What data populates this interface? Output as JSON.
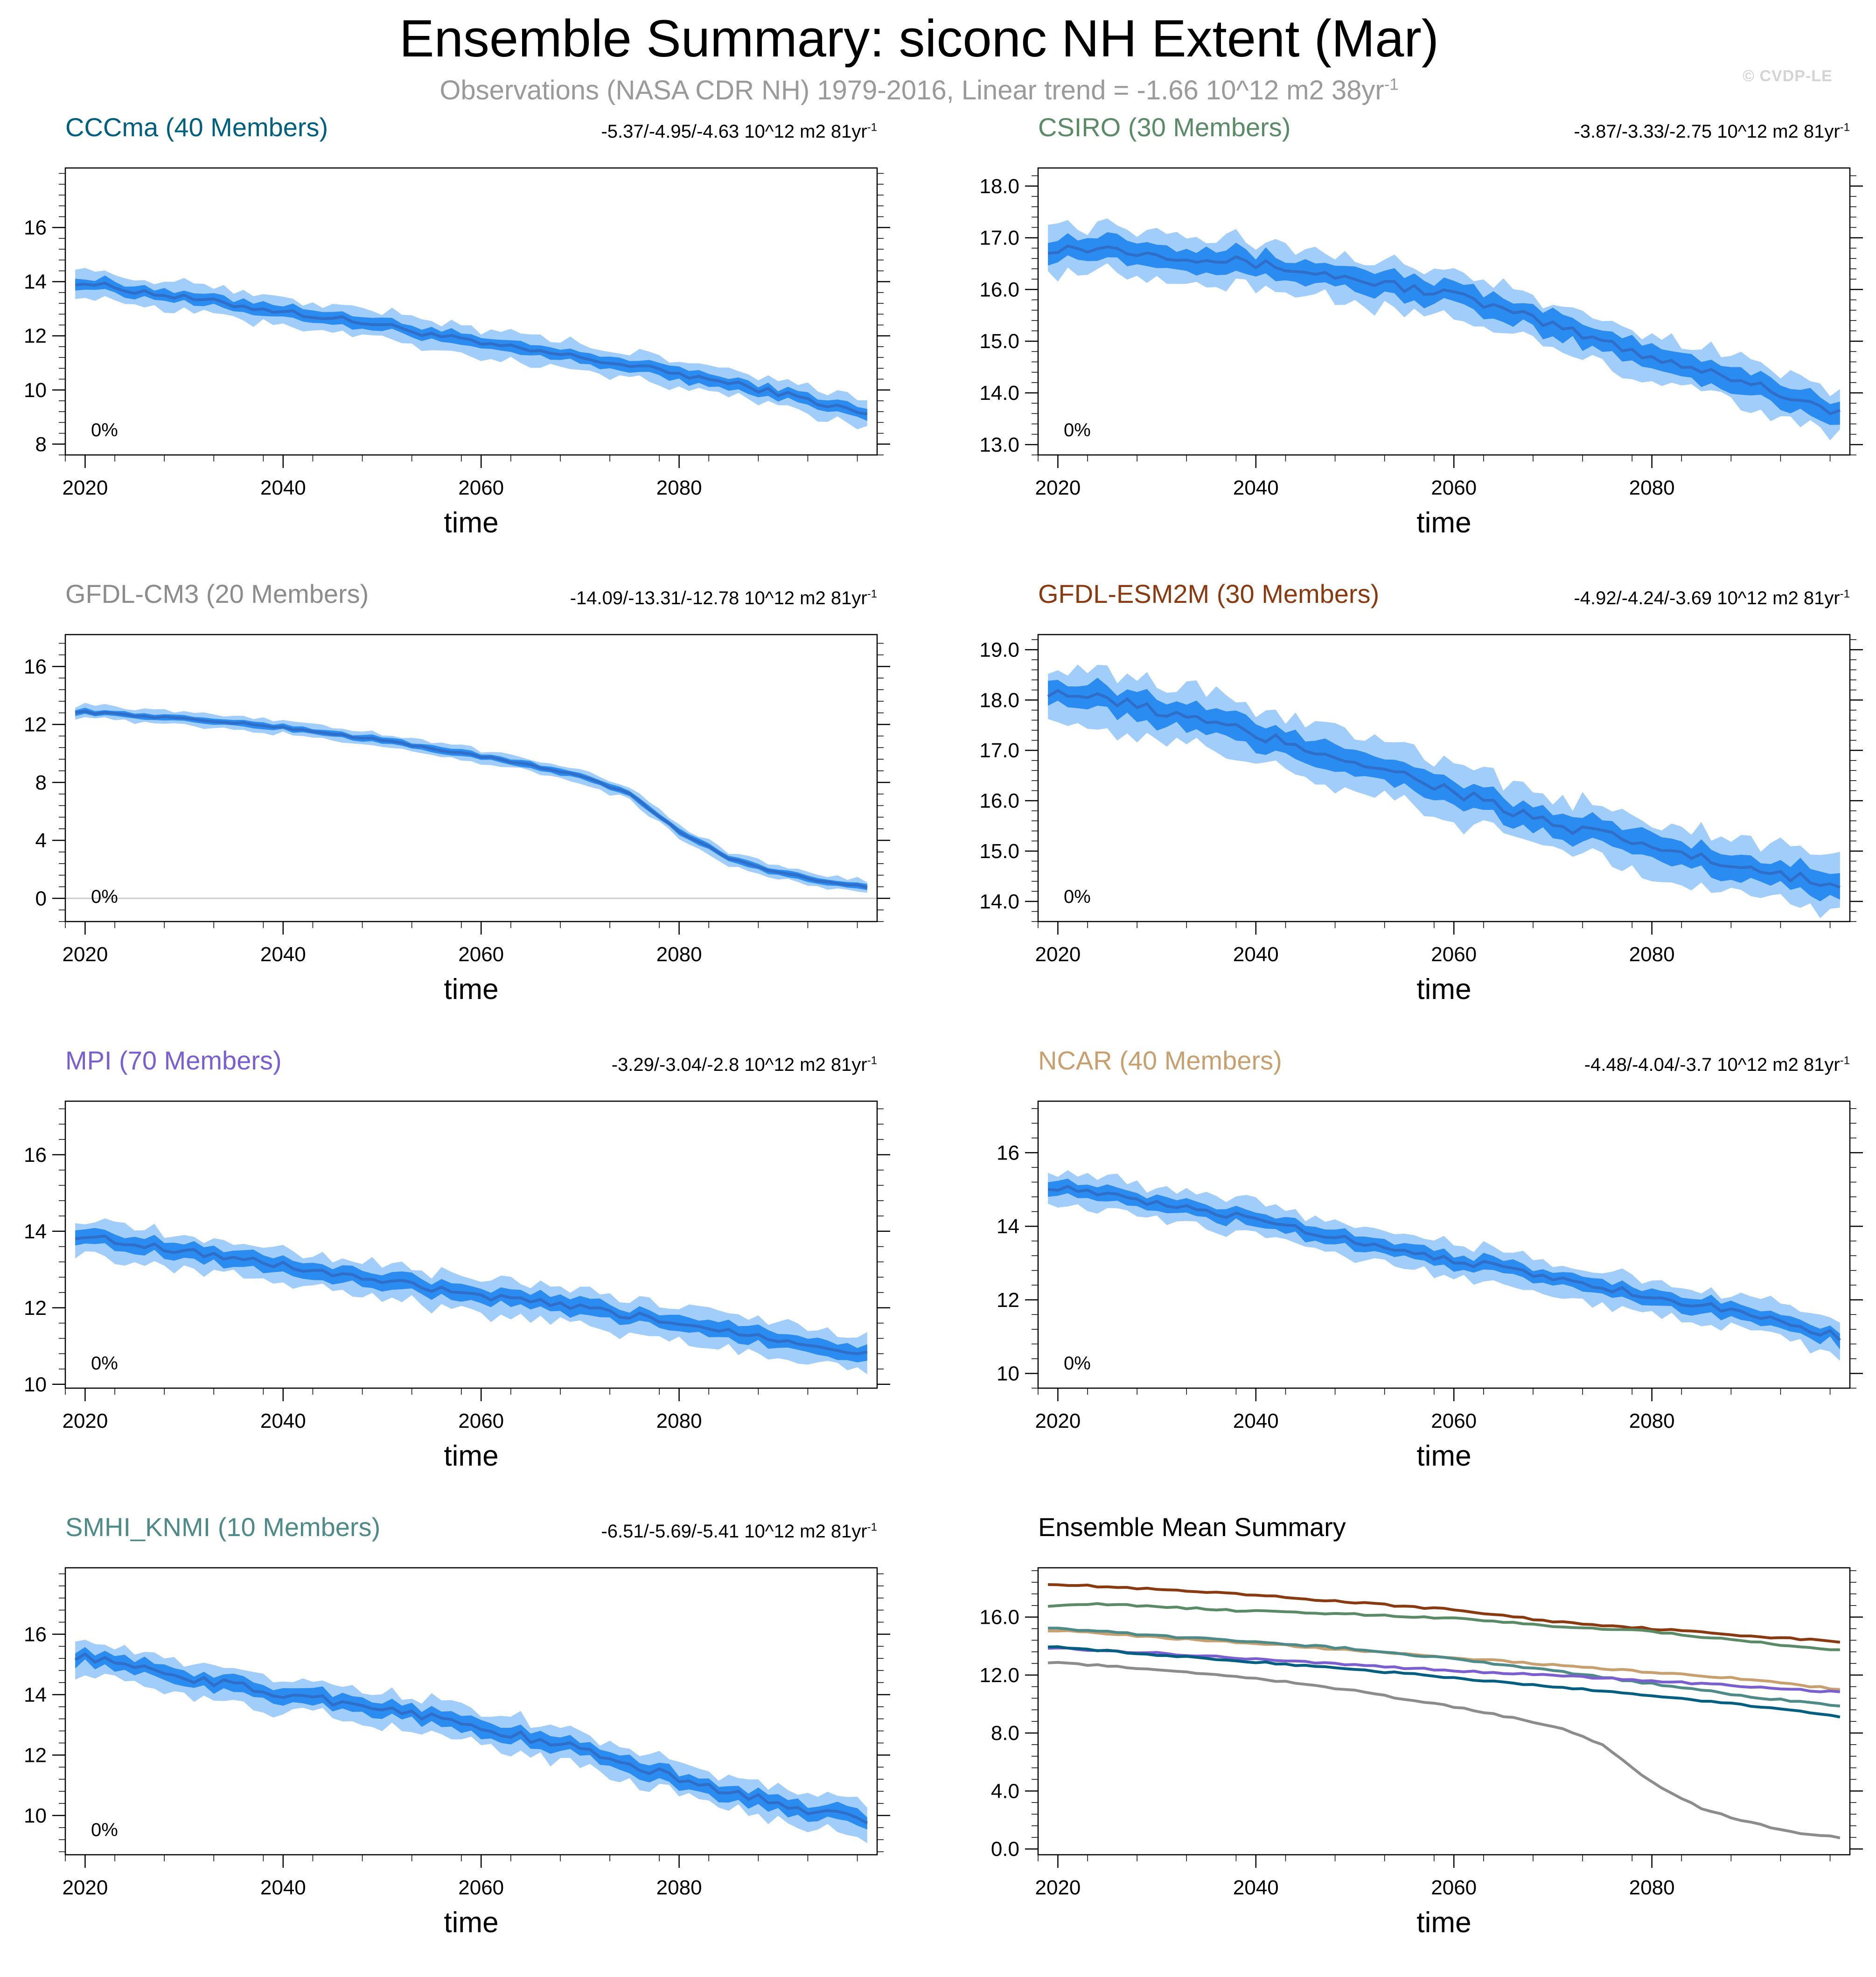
{
  "title": "Ensemble Summary: siconc NH Extent (Mar)",
  "subtitle": {
    "text": "Observations (NASA CDR NH) 1979-2016, Linear trend = -1.66 10^12 m2 38yr",
    "superscript": "-1"
  },
  "watermark": "© CVDP-LE",
  "trend_superscript": "-1",
  "colors": {
    "spread_outer": "#a0cdfa",
    "spread_inner": "#2a8bf0",
    "mean_line": "#2f6fc9",
    "axis": "#000000",
    "zero_line": "#cccccc"
  },
  "chart_data": [
    {
      "type": "area",
      "title": "CCCma (40 Members)",
      "title_color": "#005f80",
      "trend": "-5.37/-4.95/-4.63 10^12 m2 81yr",
      "xlabel": "time",
      "xlim": [
        2018,
        2100
      ],
      "ylim": [
        7.6,
        18.2
      ],
      "yticks": [
        8,
        10,
        12,
        14,
        16
      ],
      "yticklabels": [
        "8",
        "10",
        "12",
        "14",
        "16"
      ],
      "xticks": [
        2020,
        2040,
        2060,
        2080
      ],
      "pct_label": "0%",
      "key_years": [
        2019,
        2030,
        2040,
        2050,
        2060,
        2070,
        2080,
        2090,
        2099
      ],
      "key_mean": [
        14.0,
        13.4,
        12.9,
        12.4,
        11.7,
        11.2,
        10.6,
        9.9,
        9.1
      ],
      "outer_spread": 0.5,
      "inner_spread": 0.22,
      "noise": 0.12
    },
    {
      "type": "area",
      "title": "CSIRO (30 Members)",
      "title_color": "#5a8a66",
      "trend": "-3.87/-3.33/-2.75 10^12 m2 81yr",
      "xlabel": "time",
      "xlim": [
        2018,
        2100
      ],
      "ylim": [
        12.8,
        18.35
      ],
      "yticks": [
        13,
        14,
        15,
        16,
        17,
        18
      ],
      "yticklabels": [
        "13.0",
        "14.0",
        "15.0",
        "16.0",
        "17.0",
        "18.0"
      ],
      "xticks": [
        2020,
        2040,
        2060,
        2080
      ],
      "pct_label": "0%",
      "key_years": [
        2019,
        2025,
        2030,
        2040,
        2050,
        2060,
        2070,
        2080,
        2090,
        2099
      ],
      "key_mean": [
        16.8,
        16.8,
        16.7,
        16.5,
        16.2,
        15.9,
        15.3,
        14.7,
        14.2,
        13.6
      ],
      "outer_spread": 0.45,
      "inner_spread": 0.22,
      "noise": 0.1
    },
    {
      "type": "area",
      "title": "GFDL-CM3 (20 Members)",
      "title_color": "#8c8c8c",
      "trend": "-14.09/-13.31/-12.78 10^12 m2 81yr",
      "xlabel": "time",
      "xlim": [
        2018,
        2100
      ],
      "ylim": [
        -1.6,
        18.2
      ],
      "yticks": [
        0,
        4,
        8,
        12,
        16
      ],
      "yticklabels": [
        "0",
        "4",
        "8",
        "12",
        "16"
      ],
      "xticks": [
        2020,
        2040,
        2060,
        2080
      ],
      "pct_label": "0%",
      "zero_line": true,
      "key_years": [
        2019,
        2030,
        2040,
        2050,
        2060,
        2070,
        2075,
        2080,
        2085,
        2090,
        2095,
        2099
      ],
      "key_mean": [
        12.9,
        12.4,
        11.8,
        10.9,
        9.8,
        8.5,
        7.2,
        4.6,
        2.8,
        1.8,
        1.1,
        0.8
      ],
      "outer_spread": 0.45,
      "inner_spread": 0.2,
      "noise": 0.08
    },
    {
      "type": "area",
      "title": "GFDL-ESM2M (30 Members)",
      "title_color": "#8a3a10",
      "trend": "-4.92/-4.24/-3.69 10^12 m2 81yr",
      "xlabel": "time",
      "xlim": [
        2018,
        2100
      ],
      "ylim": [
        13.6,
        19.3
      ],
      "yticks": [
        14,
        15,
        16,
        17,
        18,
        19
      ],
      "yticklabels": [
        "14.0",
        "15.0",
        "16.0",
        "17.0",
        "18.0",
        "19.0"
      ],
      "xticks": [
        2020,
        2040,
        2060,
        2080
      ],
      "pct_label": "0%",
      "key_years": [
        2019,
        2030,
        2040,
        2050,
        2060,
        2070,
        2080,
        2090,
        2099
      ],
      "key_mean": [
        18.2,
        17.8,
        17.3,
        16.8,
        16.2,
        15.5,
        15.1,
        14.6,
        14.3
      ],
      "outer_spread": 0.55,
      "inner_spread": 0.25,
      "noise": 0.13
    },
    {
      "type": "area",
      "title": "MPI (70 Members)",
      "title_color": "#7a5fd0",
      "trend": "-3.29/-3.04/-2.8 10^12 m2 81yr",
      "xlabel": "time",
      "xlim": [
        2018,
        2100
      ],
      "ylim": [
        9.9,
        17.4
      ],
      "yticks": [
        10,
        12,
        14,
        16
      ],
      "yticklabels": [
        "10",
        "12",
        "14",
        "16"
      ],
      "xticks": [
        2020,
        2040,
        2060,
        2080
      ],
      "pct_label": "0%",
      "key_years": [
        2019,
        2030,
        2040,
        2050,
        2060,
        2070,
        2080,
        2090,
        2099
      ],
      "key_mean": [
        13.9,
        13.5,
        13.1,
        12.7,
        12.3,
        12.0,
        11.6,
        11.2,
        10.8
      ],
      "outer_spread": 0.45,
      "inner_spread": 0.2,
      "noise": 0.1
    },
    {
      "type": "area",
      "title": "NCAR (40 Members)",
      "title_color": "#c8a070",
      "trend": "-4.48/-4.04/-3.7 10^12 m2 81yr",
      "xlabel": "time",
      "xlim": [
        2018,
        2100
      ],
      "ylim": [
        9.6,
        17.4
      ],
      "yticks": [
        10,
        12,
        14,
        16
      ],
      "yticklabels": [
        "10",
        "12",
        "14",
        "16"
      ],
      "xticks": [
        2020,
        2040,
        2060,
        2080
      ],
      "pct_label": "0%",
      "key_years": [
        2019,
        2030,
        2040,
        2050,
        2060,
        2070,
        2080,
        2090,
        2099
      ],
      "key_mean": [
        15.1,
        14.6,
        14.2,
        13.6,
        13.1,
        12.6,
        12.1,
        11.6,
        11.0
      ],
      "outer_spread": 0.45,
      "inner_spread": 0.2,
      "noise": 0.1
    },
    {
      "type": "area",
      "title": "SMHI_KNMI (10 Members)",
      "title_color": "#4e8a88",
      "trend": "-6.51/-5.69/-5.41 10^12 m2 81yr",
      "xlabel": "time",
      "xlim": [
        2018,
        2100
      ],
      "ylim": [
        8.7,
        18.2
      ],
      "yticks": [
        10,
        12,
        14,
        16
      ],
      "yticklabels": [
        "10",
        "12",
        "14",
        "16"
      ],
      "xticks": [
        2020,
        2040,
        2060,
        2080
      ],
      "pct_label": "0%",
      "key_years": [
        2019,
        2030,
        2040,
        2050,
        2060,
        2070,
        2080,
        2090,
        2099
      ],
      "key_mean": [
        15.3,
        14.6,
        14.0,
        13.6,
        12.9,
        12.2,
        11.2,
        10.4,
        9.8
      ],
      "outer_spread": 0.55,
      "inner_spread": 0.25,
      "noise": 0.15
    },
    {
      "type": "line",
      "title": "Ensemble Mean Summary",
      "title_color": "#000000",
      "xlabel": "time",
      "xlim": [
        2018,
        2100
      ],
      "ylim": [
        -0.4,
        19.4
      ],
      "yticks": [
        0,
        4,
        8,
        12,
        16
      ],
      "yticklabels": [
        "0.0",
        "4.0",
        "8.0",
        "12.0",
        "16.0"
      ],
      "xticks": [
        2020,
        2040,
        2060,
        2080
      ],
      "series": [
        {
          "name": "GFDL-ESM2M",
          "color": "#8a3a10",
          "key_years": [
            2019,
            2030,
            2040,
            2050,
            2060,
            2070,
            2080,
            2090,
            2099
          ],
          "key_mean": [
            18.3,
            17.9,
            17.5,
            17.0,
            16.5,
            15.7,
            15.2,
            14.7,
            14.3
          ]
        },
        {
          "name": "CSIRO",
          "color": "#5a8a66",
          "key_years": [
            2019,
            2025,
            2030,
            2040,
            2050,
            2060,
            2070,
            2080,
            2090,
            2099
          ],
          "key_mean": [
            16.8,
            16.9,
            16.7,
            16.4,
            16.2,
            15.9,
            15.4,
            15.0,
            14.3,
            13.7
          ]
        },
        {
          "name": "NCAR",
          "color": "#c8a070",
          "key_years": [
            2019,
            2030,
            2040,
            2050,
            2060,
            2070,
            2080,
            2090,
            2099
          ],
          "key_mean": [
            15.1,
            14.6,
            14.2,
            13.7,
            13.2,
            12.7,
            12.2,
            11.7,
            11.0
          ]
        },
        {
          "name": "SMHI_KNMI",
          "color": "#4e8a88",
          "key_years": [
            2019,
            2030,
            2040,
            2050,
            2060,
            2070,
            2080,
            2090,
            2099
          ],
          "key_mean": [
            15.3,
            14.7,
            14.3,
            13.8,
            13.1,
            12.3,
            11.4,
            10.5,
            9.9
          ]
        },
        {
          "name": "MPI",
          "color": "#7a5fd0",
          "key_years": [
            2019,
            2030,
            2040,
            2050,
            2060,
            2070,
            2080,
            2090,
            2099
          ],
          "key_mean": [
            13.9,
            13.5,
            13.1,
            12.7,
            12.3,
            12.0,
            11.6,
            11.2,
            10.8
          ]
        },
        {
          "name": "CCCma",
          "color": "#005f80",
          "key_years": [
            2019,
            2030,
            2040,
            2050,
            2060,
            2070,
            2080,
            2090,
            2099
          ],
          "key_mean": [
            14.0,
            13.4,
            12.9,
            12.4,
            11.8,
            11.2,
            10.6,
            9.9,
            9.1
          ]
        },
        {
          "name": "GFDL-CM3",
          "color": "#8c8c8c",
          "key_years": [
            2019,
            2030,
            2040,
            2050,
            2060,
            2070,
            2075,
            2080,
            2085,
            2090,
            2095,
            2099
          ],
          "key_mean": [
            12.9,
            12.4,
            11.8,
            10.9,
            9.8,
            8.5,
            7.2,
            4.6,
            2.8,
            1.8,
            1.1,
            0.8
          ]
        }
      ]
    }
  ]
}
